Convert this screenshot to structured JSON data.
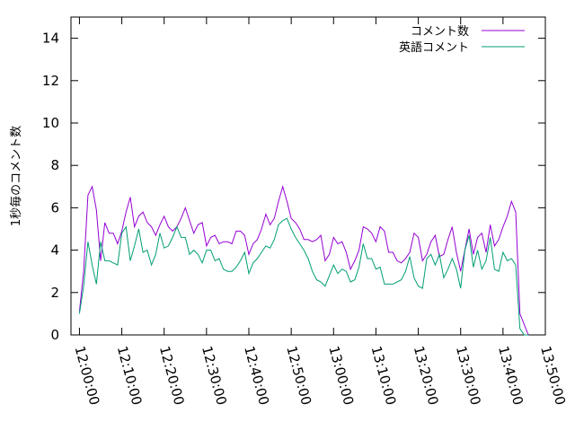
{
  "chart_data": {
    "type": "line",
    "title": "",
    "xlabel": "",
    "ylabel": "1秒毎のコメント数",
    "xlim": [
      "11:58:00",
      "13:50:00"
    ],
    "ylim": [
      0,
      15
    ],
    "grid": false,
    "legend_position": "top-right",
    "x_ticks": [
      "12:00:00",
      "12:10:00",
      "12:20:00",
      "12:30:00",
      "12:40:00",
      "12:50:00",
      "13:00:00",
      "13:10:00",
      "13:20:00",
      "13:30:00",
      "13:40:00",
      "13:50:00"
    ],
    "y_ticks": [
      0,
      2,
      4,
      6,
      8,
      10,
      12,
      14
    ],
    "x": [
      "12:00:00",
      "12:01:00",
      "12:02:00",
      "12:03:00",
      "12:04:00",
      "12:05:00",
      "12:06:00",
      "12:07:00",
      "12:08:00",
      "12:09:00",
      "12:10:00",
      "12:11:00",
      "12:12:00",
      "12:13:00",
      "12:14:00",
      "12:15:00",
      "12:16:00",
      "12:17:00",
      "12:18:00",
      "12:19:00",
      "12:20:00",
      "12:21:00",
      "12:22:00",
      "12:23:00",
      "12:24:00",
      "12:25:00",
      "12:26:00",
      "12:27:00",
      "12:28:00",
      "12:29:00",
      "12:30:00",
      "12:31:00",
      "12:32:00",
      "12:33:00",
      "12:34:00",
      "12:35:00",
      "12:36:00",
      "12:37:00",
      "12:38:00",
      "12:39:00",
      "12:40:00",
      "12:41:00",
      "12:42:00",
      "12:43:00",
      "12:44:00",
      "12:45:00",
      "12:46:00",
      "12:47:00",
      "12:48:00",
      "12:49:00",
      "12:50:00",
      "12:51:00",
      "12:52:00",
      "12:53:00",
      "12:54:00",
      "12:55:00",
      "12:56:00",
      "12:57:00",
      "12:58:00",
      "12:59:00",
      "13:00:00",
      "13:01:00",
      "13:02:00",
      "13:03:00",
      "13:04:00",
      "13:05:00",
      "13:06:00",
      "13:07:00",
      "13:08:00",
      "13:09:00",
      "13:10:00",
      "13:11:00",
      "13:12:00",
      "13:13:00",
      "13:14:00",
      "13:15:00",
      "13:16:00",
      "13:17:00",
      "13:18:00",
      "13:19:00",
      "13:20:00",
      "13:21:00",
      "13:22:00",
      "13:23:00",
      "13:24:00",
      "13:25:00",
      "13:26:00",
      "13:27:00",
      "13:28:00",
      "13:29:00",
      "13:30:00",
      "13:31:00",
      "13:32:00",
      "13:33:00",
      "13:34:00",
      "13:35:00",
      "13:36:00",
      "13:37:00",
      "13:38:00",
      "13:39:00",
      "13:40:00",
      "13:41:00",
      "13:42:00",
      "13:43:00",
      "13:44:00",
      "13:45:00",
      "13:46:00",
      "13:47:00"
    ],
    "series": [
      {
        "name": "コメント数",
        "color": "#9400d3",
        "values": [
          1.1,
          3.0,
          6.6,
          7.0,
          5.9,
          3.5,
          5.3,
          4.8,
          4.8,
          4.3,
          4.9,
          5.8,
          6.5,
          5.1,
          5.6,
          5.8,
          5.3,
          5.1,
          4.7,
          5.2,
          5.6,
          5.1,
          4.9,
          5.1,
          5.5,
          6.0,
          5.4,
          4.8,
          5.2,
          5.3,
          4.2,
          4.6,
          4.7,
          4.3,
          4.4,
          4.4,
          4.3,
          4.9,
          4.9,
          4.7,
          3.8,
          4.3,
          4.5,
          5.0,
          5.7,
          5.2,
          5.5,
          6.3,
          7.0,
          6.3,
          5.5,
          5.3,
          5.0,
          4.5,
          4.5,
          4.4,
          4.5,
          4.7,
          3.5,
          3.8,
          4.6,
          4.3,
          4.4,
          3.9,
          3.1,
          3.5,
          4.0,
          5.1,
          5.0,
          4.8,
          4.4,
          5.1,
          4.9,
          3.9,
          3.9,
          3.5,
          3.4,
          3.6,
          3.9,
          4.8,
          4.6,
          3.5,
          3.8,
          4.4,
          4.7,
          3.7,
          3.8,
          4.5,
          5.1,
          3.9,
          3.0,
          4.0,
          5.0,
          3.8,
          4.6,
          4.8,
          3.9,
          5.2,
          4.2,
          4.5,
          5.1,
          5.6,
          6.3,
          5.8,
          1.0,
          0.5,
          0.0,
          0.0
        ],
        "values_note": "",
        "render_until": "13:46:00"
      },
      {
        "name": "英語コメント",
        "color": "#009e73",
        "values": [
          1.0,
          2.3,
          4.4,
          3.3,
          2.4,
          4.4,
          3.5,
          3.5,
          3.4,
          3.3,
          4.8,
          5.1,
          3.5,
          4.2,
          5.0,
          3.9,
          4.0,
          3.3,
          3.8,
          4.8,
          4.1,
          4.2,
          4.6,
          5.1,
          4.6,
          4.6,
          3.8,
          4.0,
          3.8,
          3.4,
          4.0,
          4.0,
          3.5,
          3.6,
          3.1,
          3.0,
          3.0,
          3.2,
          3.5,
          3.9,
          2.9,
          3.4,
          3.6,
          3.9,
          4.2,
          4.1,
          4.5,
          5.2,
          5.4,
          5.5,
          5.0,
          4.6,
          4.3,
          4.0,
          3.6,
          3.0,
          2.6,
          2.5,
          2.3,
          2.8,
          3.3,
          2.9,
          3.1,
          3.0,
          2.5,
          2.6,
          3.2,
          4.3,
          3.6,
          3.6,
          3.1,
          3.2,
          2.4,
          2.4,
          2.4,
          2.5,
          2.6,
          3.0,
          3.7,
          2.7,
          2.3,
          2.2,
          3.6,
          3.8,
          3.3,
          3.8,
          2.7,
          3.1,
          3.6,
          3.1,
          2.2,
          4.0,
          4.7,
          3.2,
          4.0,
          3.1,
          3.5,
          4.6,
          3.1,
          3.0,
          3.9,
          3.5,
          3.6,
          3.3,
          0.3,
          0.0,
          0.0,
          0.0
        ],
        "values_note": "",
        "render_until": "13:46:00"
      }
    ]
  }
}
